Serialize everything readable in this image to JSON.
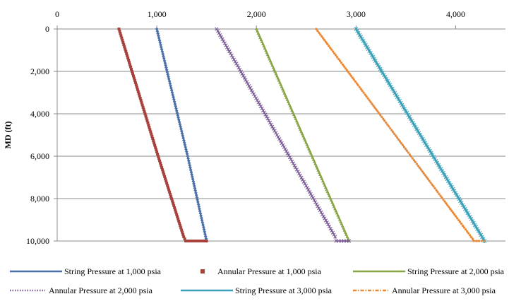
{
  "chart_data": {
    "type": "line",
    "title": "",
    "xlabel": "",
    "ylabel": "MD (ft)",
    "x_axis_position": "top",
    "y_axis_inverted": true,
    "xlim": [
      0,
      4500
    ],
    "ylim": [
      0,
      10000
    ],
    "x_ticks": [
      0,
      1000,
      2000,
      3000,
      4000
    ],
    "x_tick_labels": [
      "0",
      "1,000",
      "2,000",
      "3,000",
      "4,000"
    ],
    "y_ticks": [
      0,
      2000,
      4000,
      6000,
      8000,
      10000
    ],
    "y_tick_labels": [
      "0",
      "2,000",
      "4,000",
      "6,000",
      "8,000",
      "10,000"
    ],
    "grid": "horizontal",
    "legend_position": "bottom",
    "series": [
      {
        "name": "String Pressure at 1,000 psia",
        "color": "#4a70a8",
        "marker": "diamond",
        "style": "solid",
        "points": [
          [
            1000,
            0
          ],
          [
            1310,
            6000
          ],
          [
            1500,
            10000
          ],
          [
            1500,
            10000
          ]
        ]
      },
      {
        "name": "Annular Pressure at 1,000 psia",
        "color": "#a8403c",
        "marker": "square",
        "style": "solid",
        "points": [
          [
            620,
            0
          ],
          [
            1000,
            5800
          ],
          [
            1270,
            9800
          ],
          [
            1290,
            10000
          ],
          [
            1500,
            10000
          ]
        ]
      },
      {
        "name": "String Pressure at 2,000 psia",
        "color": "#86a544",
        "marker": "triangle",
        "style": "solid",
        "points": [
          [
            2000,
            0
          ],
          [
            2930,
            10000
          ]
        ]
      },
      {
        "name": "Annular Pressure at 2,000 psia",
        "color": "#7a5896",
        "marker": "x",
        "style": "dotted",
        "points": [
          [
            1600,
            0
          ],
          [
            2790,
            9800
          ],
          [
            2800,
            10000
          ],
          [
            2930,
            10000
          ]
        ]
      },
      {
        "name": "String Pressure at 3,000 psia",
        "color": "#3aa0b8",
        "marker": "star",
        "style": "solid",
        "points": [
          [
            3000,
            0
          ],
          [
            4290,
            10000
          ]
        ]
      },
      {
        "name": "Annular Pressure at 3,000 psia",
        "color": "#e88a3a",
        "marker": "circle",
        "style": "dash-dot",
        "points": [
          [
            2600,
            0
          ],
          [
            4170,
            9900
          ],
          [
            4180,
            10000
          ],
          [
            4290,
            10000
          ]
        ]
      }
    ]
  }
}
